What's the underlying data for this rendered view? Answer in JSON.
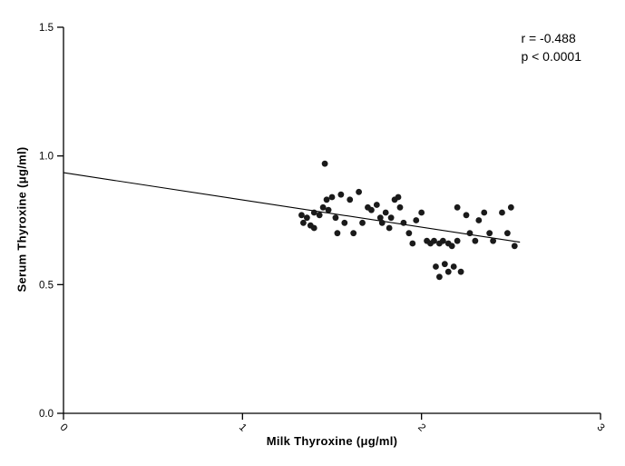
{
  "chart_data": {
    "type": "scatter",
    "title": "",
    "xlabel": "Milk Thyroxine (μg/ml)",
    "ylabel": "Serum Thyroxine (μg/ml)",
    "xlim": [
      0,
      3
    ],
    "ylim": [
      0,
      1.5
    ],
    "xticks": [
      0,
      1,
      2,
      3
    ],
    "xtick_labels": [
      "0",
      "1",
      "2",
      "3"
    ],
    "yticks": [
      0,
      0.5,
      1.0,
      1.5
    ],
    "ytick_labels": [
      "0.0",
      "0.5",
      "1.0",
      "1.5"
    ],
    "grid": false,
    "legend": "none",
    "annotation": {
      "r_label": "r = -0.488",
      "p_label": "p < 0.0001"
    },
    "style": {
      "point_color": "#1a1a1a",
      "line_color": "#000000",
      "axis_color": "#000000",
      "point_radius": 3.4
    },
    "regression_line": {
      "x": [
        0,
        2.55
      ],
      "y": [
        0.935,
        0.665
      ]
    },
    "points": [
      [
        1.33,
        0.77
      ],
      [
        1.34,
        0.74
      ],
      [
        1.36,
        0.76
      ],
      [
        1.38,
        0.73
      ],
      [
        1.4,
        0.78
      ],
      [
        1.4,
        0.72
      ],
      [
        1.43,
        0.77
      ],
      [
        1.45,
        0.8
      ],
      [
        1.46,
        0.97
      ],
      [
        1.47,
        0.83
      ],
      [
        1.48,
        0.79
      ],
      [
        1.5,
        0.84
      ],
      [
        1.52,
        0.76
      ],
      [
        1.53,
        0.7
      ],
      [
        1.55,
        0.85
      ],
      [
        1.57,
        0.74
      ],
      [
        1.6,
        0.83
      ],
      [
        1.62,
        0.7
      ],
      [
        1.65,
        0.86
      ],
      [
        1.67,
        0.74
      ],
      [
        1.7,
        0.8
      ],
      [
        1.72,
        0.79
      ],
      [
        1.75,
        0.81
      ],
      [
        1.77,
        0.76
      ],
      [
        1.78,
        0.74
      ],
      [
        1.8,
        0.78
      ],
      [
        1.82,
        0.72
      ],
      [
        1.83,
        0.76
      ],
      [
        1.85,
        0.83
      ],
      [
        1.87,
        0.84
      ],
      [
        1.88,
        0.8
      ],
      [
        1.9,
        0.74
      ],
      [
        1.93,
        0.7
      ],
      [
        1.95,
        0.66
      ],
      [
        1.97,
        0.75
      ],
      [
        2.0,
        0.78
      ],
      [
        2.03,
        0.67
      ],
      [
        2.05,
        0.66
      ],
      [
        2.07,
        0.67
      ],
      [
        2.08,
        0.57
      ],
      [
        2.1,
        0.66
      ],
      [
        2.1,
        0.53
      ],
      [
        2.12,
        0.67
      ],
      [
        2.13,
        0.58
      ],
      [
        2.15,
        0.66
      ],
      [
        2.15,
        0.55
      ],
      [
        2.17,
        0.65
      ],
      [
        2.18,
        0.57
      ],
      [
        2.2,
        0.8
      ],
      [
        2.2,
        0.67
      ],
      [
        2.22,
        0.55
      ],
      [
        2.25,
        0.77
      ],
      [
        2.27,
        0.7
      ],
      [
        2.3,
        0.67
      ],
      [
        2.32,
        0.75
      ],
      [
        2.35,
        0.78
      ],
      [
        2.38,
        0.7
      ],
      [
        2.4,
        0.67
      ],
      [
        2.45,
        0.78
      ],
      [
        2.48,
        0.7
      ],
      [
        2.5,
        0.8
      ],
      [
        2.52,
        0.65
      ]
    ]
  }
}
